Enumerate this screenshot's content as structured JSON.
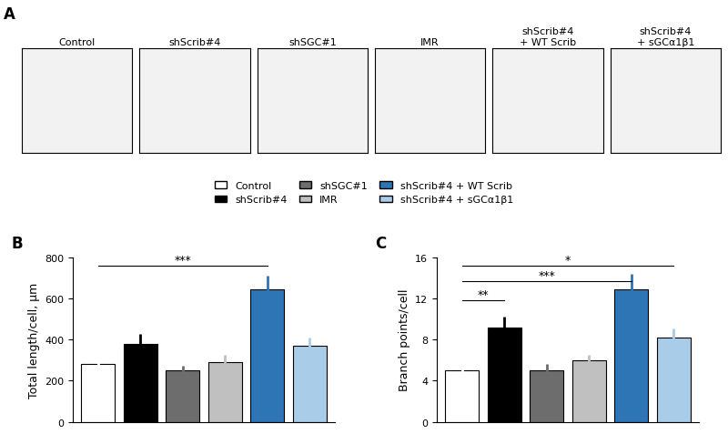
{
  "panel_labels": [
    "A",
    "B",
    "C"
  ],
  "images": [
    "Control",
    "shScrib#4",
    "shSGC#1",
    "IMR",
    "shScrib#4\n+ WT Scrib",
    "shScrib#4\n+ sGCα1β1"
  ],
  "legend": "center",
  "legend_entries": [
    {
      "name": "Control",
      "color": "#ffffff"
    },
    {
      "name": "shScrib#4",
      "color": "#000000"
    },
    {
      "name": "shSGC#1",
      "color": "#6d6d6d"
    },
    {
      "name": "IMR",
      "color": "#c0c0c0"
    },
    {
      "name": "shScrib#4 + WT Scrib",
      "color": "#2e75b6"
    },
    {
      "name": "shScrib#4 + sGCα1β1",
      "color": "#a9cce8"
    }
  ],
  "chart_data": [
    {
      "type": "bar",
      "y_label": "Total length/cell, µm",
      "values": [
        280,
        380,
        250,
        290,
        645,
        370
      ],
      "errors": [
        25,
        45,
        20,
        35,
        65,
        40
      ],
      "colors": [
        "#ffffff",
        "#000000",
        "#6d6d6d",
        "#c0c0c0",
        "#2e75b6",
        "#a9cce8"
      ],
      "ylim": [
        0,
        800
      ],
      "yticks": [
        0,
        200,
        400,
        600,
        800
      ],
      "tick_labels": "y",
      "annotations": [
        {
          "text": "***",
          "from": 0,
          "to": 4,
          "y": 760
        }
      ]
    },
    {
      "type": "bar",
      "y_label": "Branch points/cell",
      "values": [
        5.0,
        9.2,
        5.0,
        6.0,
        12.9,
        8.2
      ],
      "errors": [
        0.5,
        1.0,
        0.6,
        0.5,
        1.5,
        0.9
      ],
      "colors": [
        "#ffffff",
        "#000000",
        "#6d6d6d",
        "#c0c0c0",
        "#2e75b6",
        "#a9cce8"
      ],
      "ylim": [
        0,
        16
      ],
      "yticks": [
        0,
        4,
        8,
        12,
        16
      ],
      "tick_labels": "y",
      "annotations": [
        {
          "text": "**",
          "from": 0,
          "to": 1,
          "y": 11.8
        },
        {
          "text": "***",
          "from": 0,
          "to": 4,
          "y": 13.7
        },
        {
          "text": "*",
          "from": 0,
          "to": 5,
          "y": 15.2
        }
      ]
    }
  ]
}
